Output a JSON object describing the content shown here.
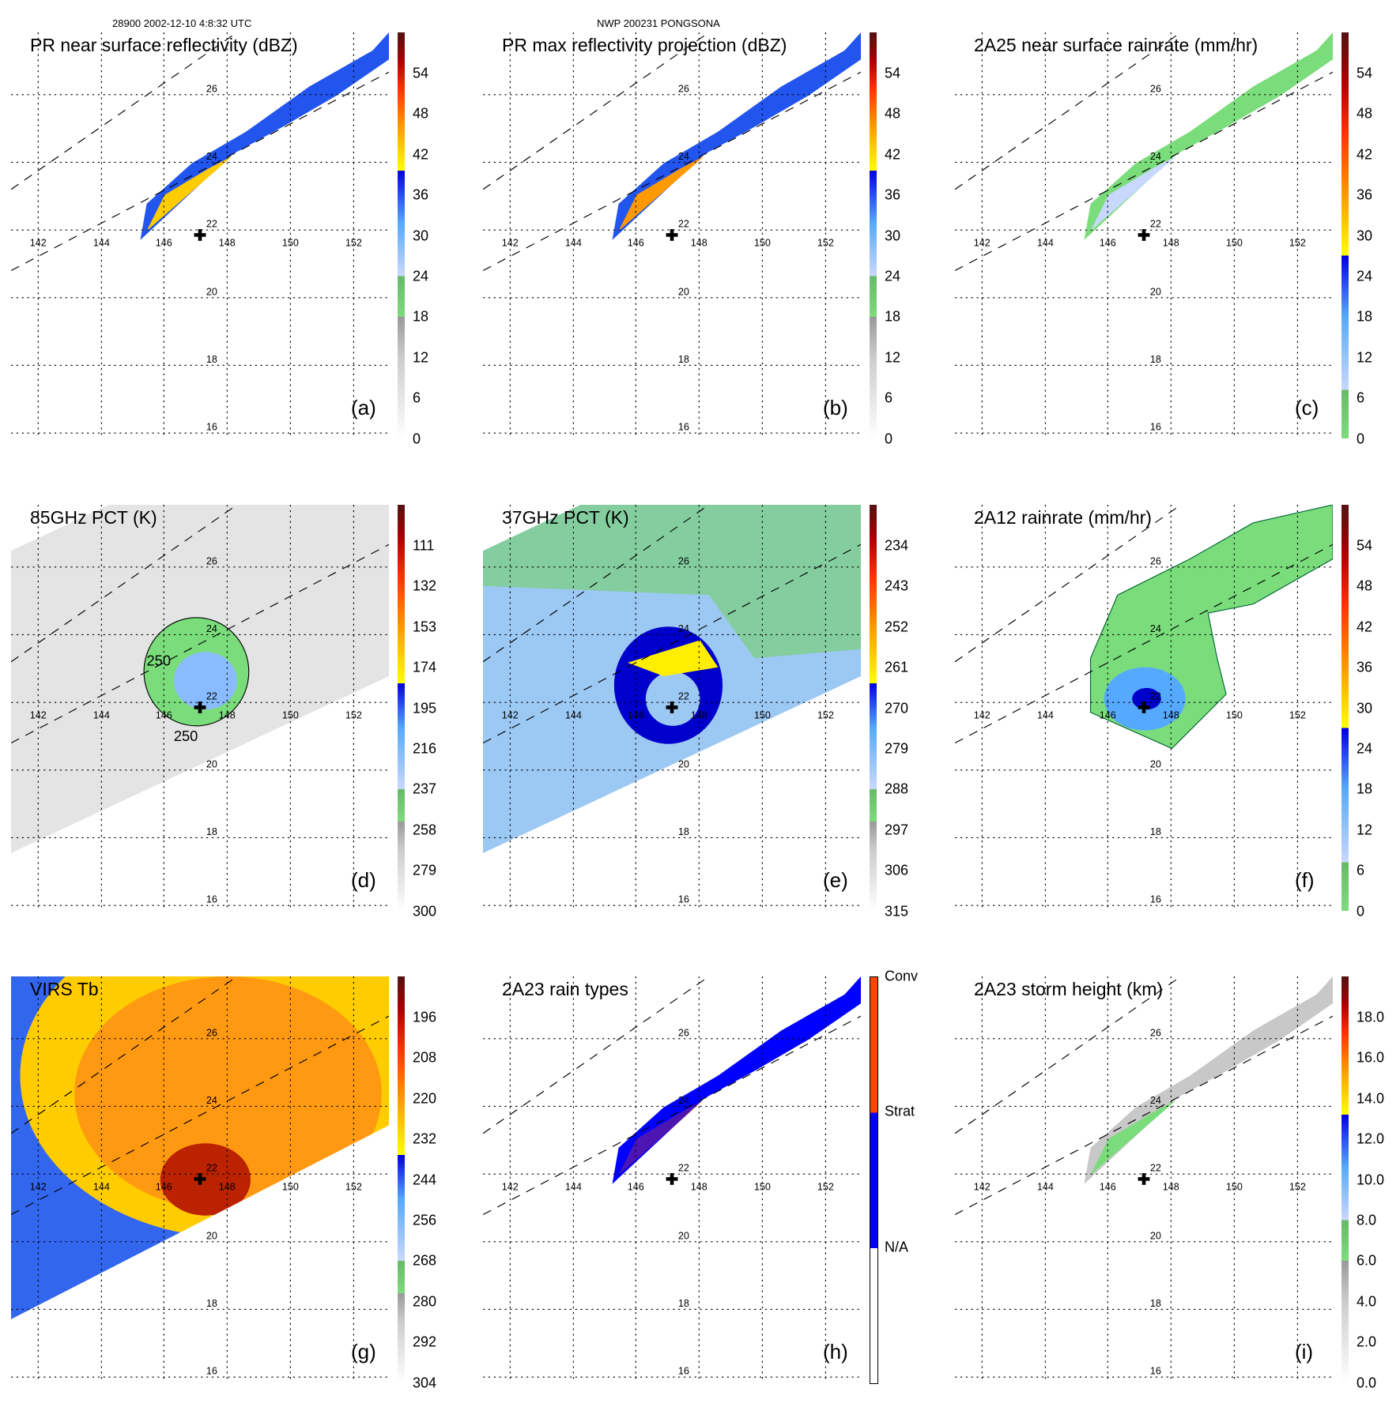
{
  "header": {
    "left": "28900 2002-12-10 4:8:32 UTC",
    "center": "NWP 200231 PONGSONA"
  },
  "lon_labels": [
    "142",
    "144",
    "146",
    "148",
    "150",
    "152"
  ],
  "lat_labels": [
    "26",
    "24",
    "22",
    "20",
    "18",
    "16"
  ],
  "colors": {
    "conv": "#ff4400",
    "strat": "#0000ff",
    "na": "#ffffff"
  },
  "panels": [
    {
      "id": "a",
      "title": "PR near surface reflectivity (dBZ)",
      "letter": "(a)",
      "ticks": [
        "54",
        "48",
        "42",
        "36",
        "30",
        "24",
        "18",
        "12",
        "6",
        "0"
      ]
    },
    {
      "id": "b",
      "title": "PR max reflectivity projection (dBZ)",
      "letter": "(b)",
      "ticks": [
        "54",
        "48",
        "42",
        "36",
        "30",
        "24",
        "18",
        "12",
        "6",
        "0"
      ]
    },
    {
      "id": "c",
      "title": "2A25 near surface rainrate (mm/hr)",
      "letter": "(c)",
      "ticks": [
        "54",
        "48",
        "42",
        "36",
        "30",
        "24",
        "18",
        "12",
        "6",
        "0"
      ]
    },
    {
      "id": "d",
      "title": "85GHz PCT (K)",
      "letter": "(d)",
      "ticks": [
        "111",
        "132",
        "153",
        "174",
        "195",
        "216",
        "237",
        "258",
        "279",
        "300"
      ],
      "contours": [
        "250",
        "250"
      ]
    },
    {
      "id": "e",
      "title": "37GHz PCT (K)",
      "letter": "(e)",
      "ticks": [
        "234",
        "243",
        "252",
        "261",
        "270",
        "279",
        "288",
        "297",
        "306",
        "315"
      ]
    },
    {
      "id": "f",
      "title": "2A12 rainrate (mm/hr)",
      "letter": "(f)",
      "ticks": [
        "54",
        "48",
        "42",
        "36",
        "30",
        "24",
        "18",
        "12",
        "6",
        "0"
      ]
    },
    {
      "id": "g",
      "title": "VIRS Tb",
      "letter": "(g)",
      "ticks": [
        "196",
        "208",
        "220",
        "232",
        "244",
        "256",
        "268",
        "280",
        "292",
        "304"
      ]
    },
    {
      "id": "h",
      "title": "2A23 rain types",
      "letter": "(h)",
      "ticks": [
        "Conv",
        "Strat",
        "N/A"
      ]
    },
    {
      "id": "i",
      "title": "2A23 storm height (km)",
      "letter": "(i)",
      "ticks": [
        "18.0",
        "16.0",
        "14.0",
        "12.0",
        "10.0",
        "8.0",
        "6.0",
        "4.0",
        "2.0",
        "0.0"
      ]
    }
  ]
}
